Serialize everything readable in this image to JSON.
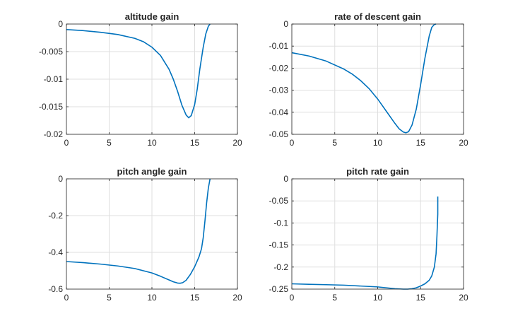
{
  "figure": {
    "line_color": "#0072BD",
    "grid_color": "#dfdfdf",
    "axes_color": "#262626"
  },
  "chart_data": [
    {
      "type": "line",
      "title": "altitude gain",
      "xlabel": "",
      "ylabel": "",
      "xlim": [
        0,
        20
      ],
      "ylim": [
        -0.02,
        0
      ],
      "xticks": [
        0,
        5,
        10,
        15,
        20
      ],
      "xtick_labels": [
        "0",
        "5",
        "10",
        "15",
        "20"
      ],
      "yticks": [
        0,
        -0.005,
        -0.01,
        -0.015,
        -0.02
      ],
      "ytick_labels": [
        "0",
        "-0.005",
        "-0.01",
        "-0.015",
        "-0.02"
      ],
      "grid": true,
      "series": [
        {
          "x": [
            0,
            2,
            4,
            6,
            8,
            9,
            10,
            11,
            12,
            12.5,
            13,
            13.5,
            14,
            14.3,
            14.6,
            15,
            15.3,
            15.6,
            16,
            16.3,
            16.6,
            16.8
          ],
          "y": [
            -0.001,
            -0.0012,
            -0.0015,
            -0.0019,
            -0.0026,
            -0.0032,
            -0.0042,
            -0.0057,
            -0.0082,
            -0.01,
            -0.0122,
            -0.0147,
            -0.0165,
            -0.017,
            -0.0166,
            -0.0146,
            -0.0118,
            -0.0082,
            -0.0042,
            -0.0018,
            -0.0004,
            0
          ]
        }
      ]
    },
    {
      "type": "line",
      "title": "rate of descent gain",
      "xlabel": "",
      "ylabel": "",
      "xlim": [
        0,
        20
      ],
      "ylim": [
        -0.05,
        0
      ],
      "xticks": [
        0,
        5,
        10,
        15,
        20
      ],
      "xtick_labels": [
        "0",
        "5",
        "10",
        "15",
        "20"
      ],
      "yticks": [
        0,
        -0.01,
        -0.02,
        -0.03,
        -0.04,
        -0.05
      ],
      "ytick_labels": [
        "0",
        "-0.01",
        "-0.02",
        "-0.03",
        "-0.04",
        "-0.05"
      ],
      "grid": true,
      "series": [
        {
          "x": [
            0,
            2,
            4,
            6,
            7,
            8,
            9,
            10,
            11,
            12,
            12.5,
            13,
            13.3,
            13.6,
            14,
            14.5,
            15,
            15.5,
            16,
            16.3,
            16.6,
            16.8
          ],
          "y": [
            -0.013,
            -0.0145,
            -0.0168,
            -0.0203,
            -0.0226,
            -0.0256,
            -0.0293,
            -0.034,
            -0.0395,
            -0.045,
            -0.0475,
            -0.049,
            -0.0493,
            -0.0488,
            -0.0458,
            -0.0385,
            -0.0275,
            -0.0155,
            -0.0055,
            -0.0015,
            -0.0002,
            0
          ]
        }
      ]
    },
    {
      "type": "line",
      "title": "pitch angle gain",
      "xlabel": "",
      "ylabel": "",
      "xlim": [
        0,
        20
      ],
      "ylim": [
        -0.6,
        0
      ],
      "xticks": [
        0,
        5,
        10,
        15,
        20
      ],
      "xtick_labels": [
        "0",
        "5",
        "10",
        "15",
        "20"
      ],
      "yticks": [
        0,
        -0.2,
        -0.4,
        -0.6
      ],
      "ytick_labels": [
        "0",
        "-0.2",
        "-0.4",
        "-0.6"
      ],
      "grid": true,
      "series": [
        {
          "x": [
            0,
            2,
            4,
            6,
            8,
            10,
            11,
            12,
            12.5,
            13,
            13.3,
            13.6,
            14,
            14.5,
            15,
            15.5,
            15.8,
            16,
            16.2,
            16.4,
            16.6,
            16.8
          ],
          "y": [
            -0.45,
            -0.456,
            -0.464,
            -0.474,
            -0.488,
            -0.512,
            -0.53,
            -0.55,
            -0.56,
            -0.567,
            -0.568,
            -0.565,
            -0.552,
            -0.52,
            -0.478,
            -0.425,
            -0.38,
            -0.32,
            -0.23,
            -0.13,
            -0.05,
            0
          ]
        }
      ]
    },
    {
      "type": "line",
      "title": "pitch rate gain",
      "xlabel": "",
      "ylabel": "",
      "xlim": [
        0,
        20
      ],
      "ylim": [
        -0.25,
        0
      ],
      "xticks": [
        0,
        5,
        10,
        15,
        20
      ],
      "xtick_labels": [
        "0",
        "5",
        "10",
        "15",
        "20"
      ],
      "yticks": [
        0,
        -0.05,
        -0.1,
        -0.15,
        -0.2,
        -0.25
      ],
      "ytick_labels": [
        "0",
        "-0.05",
        "-0.1",
        "-0.15",
        "-0.2",
        "-0.25"
      ],
      "grid": true,
      "series": [
        {
          "x": [
            0,
            2,
            4,
            6,
            8,
            10,
            11,
            12,
            13,
            13.5,
            14,
            14.5,
            15,
            15.5,
            16,
            16.3,
            16.6,
            16.8,
            16.9,
            17,
            17
          ],
          "y": [
            -0.238,
            -0.239,
            -0.24,
            -0.241,
            -0.243,
            -0.245,
            -0.247,
            -0.249,
            -0.25,
            -0.25,
            -0.249,
            -0.247,
            -0.243,
            -0.238,
            -0.23,
            -0.22,
            -0.2,
            -0.17,
            -0.13,
            -0.08,
            -0.04
          ]
        }
      ]
    }
  ]
}
